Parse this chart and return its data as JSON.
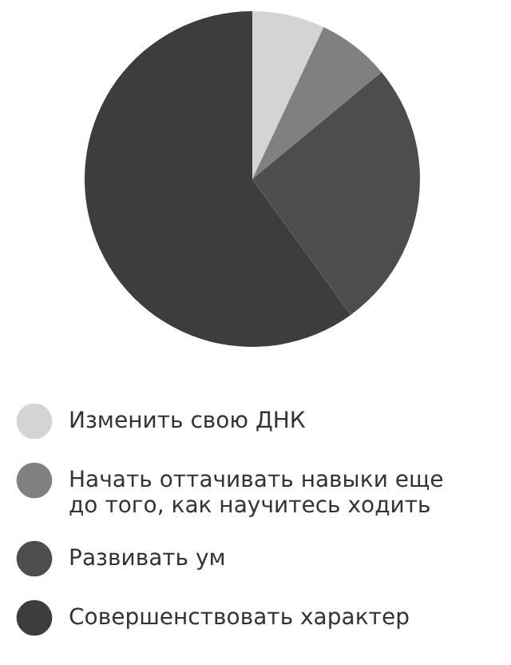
{
  "chart_data": {
    "type": "pie",
    "categories": [
      "Изменить свою ДНК",
      "Начать оттачивать навыки еще до того, как научитесь ходить",
      "Развивать ум",
      "Совершенствовать характер"
    ],
    "values": [
      7,
      7,
      26,
      60
    ],
    "colors": [
      "#d4d4d4",
      "#808080",
      "#4d4d4d",
      "#3d3d3d"
    ],
    "legend": "bottom left"
  }
}
